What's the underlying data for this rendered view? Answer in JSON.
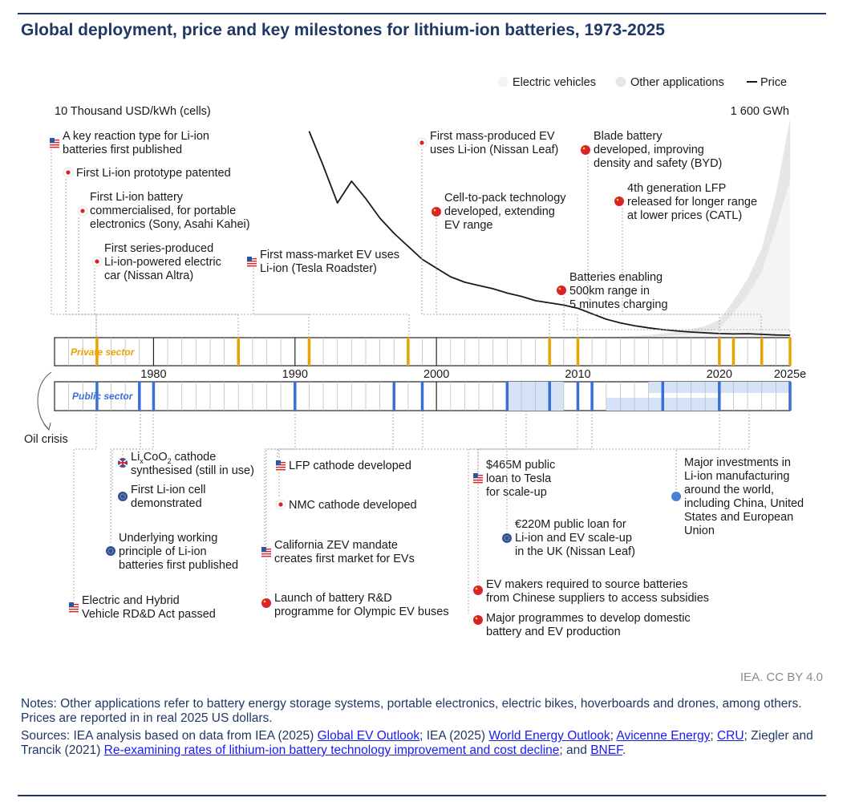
{
  "title": "Global deployment, price and key milestones for lithium-ion batteries, 1973-2025",
  "credit": "IEA. CC BY 4.0",
  "notes": {
    "notes_text": "Notes: Other applications refer to battery energy storage systems, portable electronics, electric bikes, hoverboards and drones, among others. Prices are reported in in real 2025 US dollars.",
    "sources_prefix": "Sources: IEA analysis based on data from IEA (2025) ",
    "link1": "Global EV Outlook",
    "sep1": "; IEA (2025) ",
    "link2": "World Energy Outlook",
    "sep2": "; ",
    "link3": "Avicenne Energy",
    "sep3": "; ",
    "link4": "CRU",
    "sep4": "; Ziegler and Trancik (2021) ",
    "link5": "Re-examining rates of lithium-ion battery technology improvement and cost decline",
    "sep5": "; and ",
    "link6": "BNEF",
    "end": "."
  },
  "colors": {
    "private": "#e8a400",
    "public": "#3a6fd8",
    "public_band": "#d6e2f5",
    "area_other": "#e6e6e6",
    "area_ev": "#f4f4f4",
    "price": "#1a1a1a",
    "flag_red": "#d6242a",
    "flag_blue": "#2457a6"
  },
  "chart_data": {
    "type": "timeline-area-line",
    "legend": [
      {
        "key": "ev",
        "label": "Electric vehicles"
      },
      {
        "key": "other",
        "label": "Other applications"
      },
      {
        "key": "price",
        "label": "Price"
      }
    ],
    "left_axis_label": "10 Thousand USD/kWh (cells)",
    "right_axis_label": "1 600 GWh",
    "x_range": [
      1973,
      2025
    ],
    "year_ticks": [
      {
        "year": 1980,
        "label": "1980"
      },
      {
        "year": 1990,
        "label": "1990"
      },
      {
        "year": 2000,
        "label": "2000"
      },
      {
        "year": 2010,
        "label": "2010"
      },
      {
        "year": 2020,
        "label": "2020"
      },
      {
        "year": 2025,
        "label": "2025e"
      }
    ],
    "tracks": {
      "private": "Private sector",
      "public": "Public sector"
    },
    "oil_crisis": {
      "year": 1973,
      "label": "Oil crisis"
    },
    "price_series": {
      "unit": "10 thousand USD/kWh",
      "points": [
        [
          1991,
          0.95
        ],
        [
          1992,
          0.79
        ],
        [
          1993,
          0.62
        ],
        [
          1994,
          0.72
        ],
        [
          1995,
          0.64
        ],
        [
          1996,
          0.55
        ],
        [
          1997,
          0.48
        ],
        [
          1998,
          0.42
        ],
        [
          1999,
          0.36
        ],
        [
          2000,
          0.32
        ],
        [
          2001,
          0.28
        ],
        [
          2002,
          0.255
        ],
        [
          2003,
          0.24
        ],
        [
          2004,
          0.225
        ],
        [
          2005,
          0.205
        ],
        [
          2006,
          0.19
        ],
        [
          2007,
          0.17
        ],
        [
          2008,
          0.16
        ],
        [
          2009,
          0.15
        ],
        [
          2010,
          0.135
        ],
        [
          2011,
          0.11
        ],
        [
          2012,
          0.085
        ],
        [
          2013,
          0.068
        ],
        [
          2014,
          0.055
        ],
        [
          2015,
          0.045
        ],
        [
          2016,
          0.037
        ],
        [
          2017,
          0.031
        ],
        [
          2018,
          0.026
        ],
        [
          2019,
          0.022
        ],
        [
          2020,
          0.019
        ],
        [
          2021,
          0.017
        ],
        [
          2022,
          0.018
        ],
        [
          2023,
          0.015
        ],
        [
          2024,
          0.012
        ],
        [
          2025,
          0.011
        ]
      ]
    },
    "deployment_total_gwh": [
      [
        2010,
        0
      ],
      [
        2012,
        5
      ],
      [
        2014,
        10
      ],
      [
        2015,
        20
      ],
      [
        2016,
        30
      ],
      [
        2017,
        45
      ],
      [
        2018,
        60
      ],
      [
        2019,
        85
      ],
      [
        2020,
        130
      ],
      [
        2021,
        270
      ],
      [
        2022,
        430
      ],
      [
        2023,
        650
      ],
      [
        2024,
        1050
      ],
      [
        2025,
        1600
      ]
    ],
    "deployment_ev_gwh": [
      [
        2010,
        0
      ],
      [
        2012,
        1
      ],
      [
        2014,
        3
      ],
      [
        2015,
        6
      ],
      [
        2016,
        10
      ],
      [
        2017,
        18
      ],
      [
        2018,
        28
      ],
      [
        2019,
        40
      ],
      [
        2020,
        65
      ],
      [
        2021,
        180
      ],
      [
        2022,
        310
      ],
      [
        2023,
        480
      ],
      [
        2024,
        800
      ],
      [
        2025,
        1150
      ]
    ],
    "private_events": [
      {
        "year": 1976,
        "flag": "us",
        "text": [
          "A key reaction type for Li-ion",
          "batteries first published"
        ]
      },
      {
        "year": 1976,
        "flag": "jp",
        "text": [
          "First Li-ion prototype patented"
        ]
      },
      {
        "year": 1986,
        "flag": "jp",
        "text": [
          "First Li-ion battery",
          "commercialised, for portable",
          "electronics (Sony, Asahi Kahei)"
        ]
      },
      {
        "year": 1991,
        "flag": "jp",
        "text": [
          "First series-produced",
          "Li-ion-powered electric",
          "car (Nissan Altra)"
        ]
      },
      {
        "year": 1998,
        "flag": "us",
        "text": [
          "First mass-market EV uses",
          "Li-ion (Tesla Roadster)"
        ]
      },
      {
        "year": 2010,
        "flag": "jp",
        "text": [
          "First mass-produced EV",
          "uses Li-ion (Nissan Leaf)"
        ]
      },
      {
        "year": 2008,
        "flag": "cn",
        "text": [
          "Cell-to-pack technology",
          "developed, extending",
          "EV range"
        ]
      },
      {
        "year": 2020,
        "flag": "cn",
        "text": [
          "Blade battery",
          "developed, improving",
          "density and safety (BYD)"
        ]
      },
      {
        "year": 2023,
        "flag": "cn",
        "text": [
          "4th generation LFP",
          "released for longer range",
          "at lower prices (CATL)"
        ]
      },
      {
        "year": 2025,
        "flag": "cn",
        "text": [
          "Batteries enabling",
          "500km range in",
          "5 minutes charging"
        ]
      }
    ],
    "public_events": [
      {
        "year": 1979,
        "flag": "uk",
        "text": [
          "LixCoO2 cathode",
          "synthesised (still in use)"
        ]
      },
      {
        "year": 1979,
        "flag": "eu",
        "text": [
          "First Li-ion cell",
          "demonstrated"
        ]
      },
      {
        "year": 1980,
        "flag": "eu",
        "text": [
          "Underlying working",
          "principle of Li-ion",
          "batteries first published"
        ]
      },
      {
        "year": 1976,
        "flag": "us",
        "text": [
          "Electric and Hybrid",
          "Vehicle RD&D Act passed"
        ]
      },
      {
        "year": 1997,
        "flag": "us",
        "text": [
          "LFP cathode developed"
        ]
      },
      {
        "year": 1999,
        "flag": "jp",
        "text": [
          "NMC cathode developed"
        ]
      },
      {
        "year": 1990,
        "flag": "us",
        "text": [
          "California ZEV mandate",
          "creates first market for EVs"
        ]
      },
      {
        "year": 2005,
        "flag": "cn",
        "text": [
          "Launch of battery R&D",
          "programme for Olympic EV buses"
        ]
      },
      {
        "year": 2010,
        "flag": "us",
        "text": [
          "$465M public",
          "loan to Tesla",
          "for scale-up"
        ]
      },
      {
        "year": 2011,
        "flag": "eu",
        "text": [
          "€220M public loan for",
          "Li-ion and EV scale-up",
          "in the UK (Nissan Leaf)"
        ]
      },
      {
        "year": 2016,
        "flag": "cn",
        "text": [
          "EV makers required to source batteries",
          "from Chinese suppliers to access subsidies"
        ]
      },
      {
        "year": 2009,
        "flag": "cn",
        "text": [
          "Major programmes to develop domestic",
          "battery and EV production"
        ]
      },
      {
        "year": 2018,
        "flag": "multi",
        "text": [
          "Major investments in",
          "Li-ion manufacturing",
          "around the world,",
          "including China, United",
          "States and European",
          "Union"
        ]
      }
    ],
    "private_markers": [
      1976,
      1986,
      1991,
      1998,
      2008,
      2010,
      2020,
      2021,
      2023,
      2025
    ],
    "public_markers": [
      1976,
      1979,
      1980,
      1990,
      1997,
      1999,
      2005,
      2008,
      2010,
      2011,
      2016,
      2020,
      2025
    ],
    "public_bands": [
      [
        2005,
        2009
      ],
      [
        2012,
        2020
      ],
      [
        2015,
        2025
      ]
    ]
  }
}
